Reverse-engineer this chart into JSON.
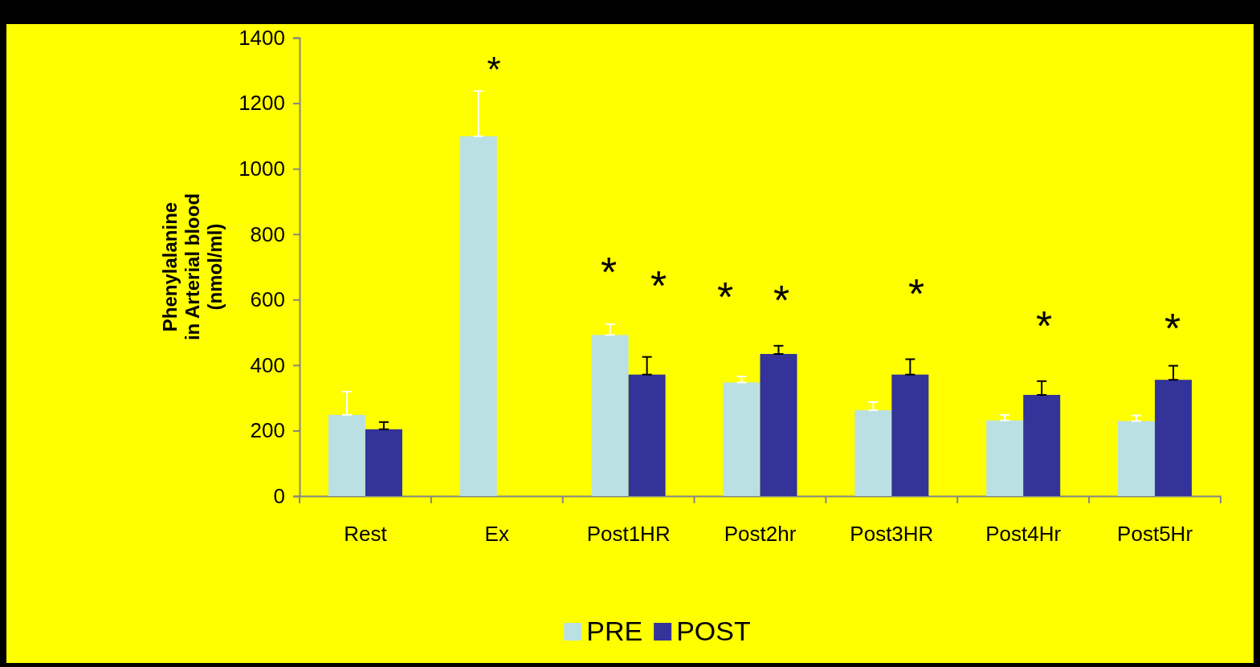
{
  "chart_data": {
    "type": "bar",
    "ylabel": "Phenylalanine\nin Arterial blood\n(nmol/ml)",
    "categories": [
      "Rest",
      "Ex",
      "Post1HR",
      "Post2hr",
      "Post3HR",
      "Post4Hr",
      "Post5Hr"
    ],
    "series": [
      {
        "name": "PRE",
        "color": "#bbe0e3",
        "values": [
          248,
          1099,
          492,
          347,
          262,
          231,
          229
        ],
        "errors": [
          [
            248,
            319
          ],
          [
            1099,
            1237
          ],
          [
            492,
            525
          ],
          [
            347,
            365
          ],
          [
            262,
            287
          ],
          [
            231,
            248
          ],
          [
            229,
            246
          ]
        ]
      },
      {
        "name": "POST",
        "color": "#333399",
        "values": [
          204,
          null,
          371,
          434,
          371,
          309,
          355
        ],
        "errors": [
          [
            204,
            226
          ],
          null,
          [
            371,
            425
          ],
          [
            434,
            459
          ],
          [
            371,
            418
          ],
          [
            309,
            351
          ],
          [
            355,
            398
          ]
        ]
      }
    ],
    "ylim": [
      0,
      1400
    ],
    "yticks": [
      0,
      200,
      400,
      600,
      800,
      1000,
      1200,
      1400
    ],
    "legend": "bottom",
    "annotations": [
      "*",
      "*",
      "*",
      "*",
      "*",
      "*",
      "*",
      "*"
    ]
  }
}
